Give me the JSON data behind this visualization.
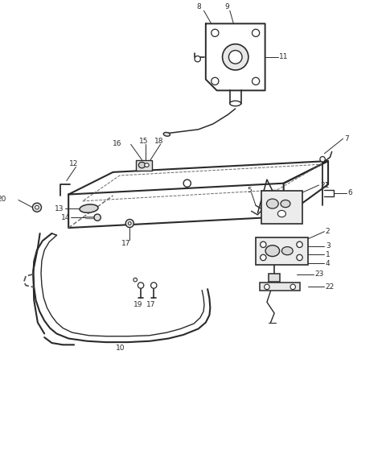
{
  "bg_color": "#ffffff",
  "line_color": "#2a2a2a",
  "fig_width": 4.8,
  "fig_height": 5.69,
  "dpi": 100
}
